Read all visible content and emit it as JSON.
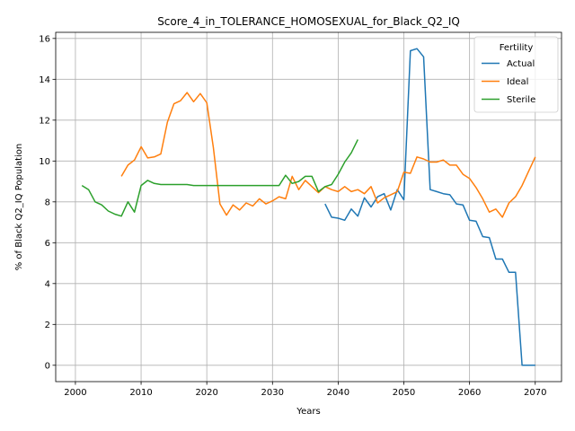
{
  "chart_data": {
    "type": "line",
    "title": "Score_4_in_TOLERANCE_HOMOSEXUAL_for_Black_Q2_IQ",
    "xlabel": "Years",
    "ylabel": "% of Black Q2_IQ Population",
    "xlim": [
      1997,
      2074
    ],
    "ylim": [
      -0.8,
      16.3
    ],
    "xticks": [
      2000,
      2010,
      2020,
      2030,
      2040,
      2050,
      2060,
      2070
    ],
    "yticks": [
      0,
      2,
      4,
      6,
      8,
      10,
      12,
      14,
      16
    ],
    "grid": true,
    "legend": {
      "title": "Fertility",
      "position": "top-right"
    },
    "series": [
      {
        "name": "Actual",
        "color": "#1f77b4",
        "x": [
          2038,
          2039,
          2040,
          2041,
          2042,
          2043,
          2044,
          2045,
          2046,
          2047,
          2048,
          2049,
          2050,
          2051,
          2052,
          2053,
          2054,
          2055,
          2056,
          2057,
          2058,
          2059,
          2060,
          2061,
          2062,
          2063,
          2064,
          2065,
          2066,
          2067,
          2068,
          2069,
          2070
        ],
        "y": [
          7.9,
          7.25,
          7.2,
          7.1,
          7.65,
          7.3,
          8.2,
          7.75,
          8.25,
          8.4,
          7.6,
          8.6,
          8.1,
          15.4,
          15.5,
          15.1,
          8.6,
          8.5,
          8.4,
          8.35,
          7.9,
          7.85,
          7.1,
          7.05,
          6.3,
          6.25,
          5.2,
          5.2,
          4.55,
          4.55,
          0.0,
          0.0,
          0.0
        ]
      },
      {
        "name": "Ideal",
        "color": "#ff7f0e",
        "x": [
          2007,
          2008,
          2009,
          2010,
          2011,
          2012,
          2013,
          2014,
          2015,
          2016,
          2017,
          2018,
          2019,
          2020,
          2021,
          2022,
          2023,
          2024,
          2025,
          2026,
          2027,
          2028,
          2029,
          2030,
          2031,
          2032,
          2033,
          2034,
          2035,
          2036,
          2037,
          2038,
          2039,
          2040,
          2041,
          2042,
          2043,
          2044,
          2045,
          2046,
          2047,
          2048,
          2049,
          2050,
          2051,
          2052,
          2053,
          2054,
          2055,
          2056,
          2057,
          2058,
          2059,
          2060,
          2061,
          2062,
          2063,
          2064,
          2065,
          2066,
          2067,
          2068,
          2069,
          2070
        ],
        "y": [
          9.25,
          9.8,
          10.05,
          10.7,
          10.15,
          10.2,
          10.35,
          11.9,
          12.8,
          12.95,
          13.35,
          12.9,
          13.3,
          12.85,
          10.65,
          7.9,
          7.35,
          7.85,
          7.6,
          7.95,
          7.8,
          8.15,
          7.9,
          8.05,
          8.25,
          8.15,
          9.25,
          8.6,
          9.05,
          8.75,
          8.45,
          8.75,
          8.6,
          8.5,
          8.75,
          8.5,
          8.6,
          8.4,
          8.75,
          7.95,
          8.2,
          8.35,
          8.5,
          9.45,
          9.4,
          10.2,
          10.1,
          9.95,
          9.95,
          10.05,
          9.8,
          9.8,
          9.35,
          9.15,
          8.7,
          8.15,
          7.5,
          7.65,
          7.25,
          7.95,
          8.25,
          8.8,
          9.5,
          10.2
        ]
      },
      {
        "name": "Sterile",
        "color": "#2ca02c",
        "x": [
          2001,
          2002,
          2003,
          2004,
          2005,
          2006,
          2007,
          2008,
          2009,
          2010,
          2011,
          2012,
          2013,
          2014,
          2015,
          2016,
          2017,
          2018,
          2019,
          2020,
          2021,
          2022,
          2023,
          2024,
          2025,
          2026,
          2027,
          2028,
          2029,
          2030,
          2031,
          2032,
          2033,
          2034,
          2035,
          2036,
          2037,
          2038,
          2039,
          2040,
          2041,
          2042,
          2043
        ],
        "y": [
          8.8,
          8.6,
          8.0,
          7.85,
          7.55,
          7.4,
          7.3,
          8.0,
          7.5,
          8.8,
          9.05,
          8.9,
          8.85,
          8.85,
          8.85,
          8.85,
          8.85,
          8.8,
          8.8,
          8.8,
          8.8,
          8.8,
          8.8,
          8.8,
          8.8,
          8.8,
          8.8,
          8.8,
          8.8,
          8.8,
          8.8,
          9.3,
          8.9,
          9.0,
          9.25,
          9.25,
          8.5,
          8.75,
          8.85,
          9.35,
          9.95,
          10.4,
          11.05
        ]
      }
    ]
  }
}
